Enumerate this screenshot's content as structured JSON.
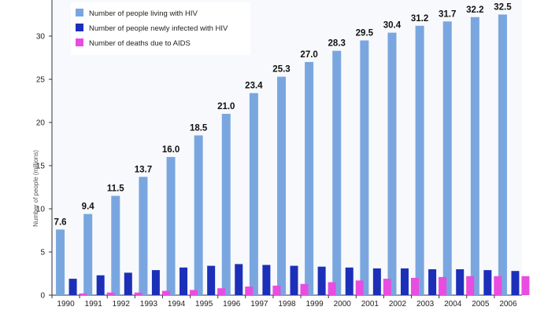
{
  "chart_data": {
    "type": "bar",
    "categories": [
      "1990",
      "1991",
      "1992",
      "1993",
      "1994",
      "1995",
      "1996",
      "1997",
      "1998",
      "1999",
      "2000",
      "2001",
      "2002",
      "2003",
      "2004",
      "2005",
      "2006"
    ],
    "series": [
      {
        "name": "Number of people living with HIV",
        "color": "#7aa6e0",
        "values": [
          7.6,
          9.4,
          11.5,
          13.7,
          16.0,
          18.5,
          21.0,
          23.4,
          25.3,
          27.0,
          28.3,
          29.5,
          30.4,
          31.2,
          31.7,
          32.2,
          32.5
        ],
        "labels": [
          "7.6",
          "9.4",
          "11.5",
          "13.7",
          "16.0",
          "18.5",
          "21.0",
          "23.4",
          "25.3",
          "27.0",
          "28.3",
          "29.5",
          "30.4",
          "31.2",
          "31.7",
          "32.2",
          "32.5"
        ]
      },
      {
        "name": "Number of people newly infected with HIV",
        "color": "#1c2fb8",
        "values": [
          1.9,
          2.3,
          2.6,
          2.9,
          3.2,
          3.4,
          3.6,
          3.5,
          3.4,
          3.3,
          3.2,
          3.1,
          3.1,
          3.0,
          3.0,
          2.9,
          2.8
        ]
      },
      {
        "name": "Number of deaths due to AIDS",
        "color": "#e94ce0",
        "values": [
          0.2,
          0.3,
          0.3,
          0.5,
          0.6,
          0.8,
          1.0,
          1.1,
          1.3,
          1.5,
          1.7,
          1.9,
          2.0,
          2.1,
          2.2,
          2.2,
          2.2
        ]
      }
    ],
    "yticks": [
      0,
      5,
      10,
      15,
      20,
      25,
      30
    ],
    "ylim": [
      0,
      33
    ],
    "ylabel": "Number of people (millions)",
    "legend_position": "top-left",
    "grid": false
  }
}
